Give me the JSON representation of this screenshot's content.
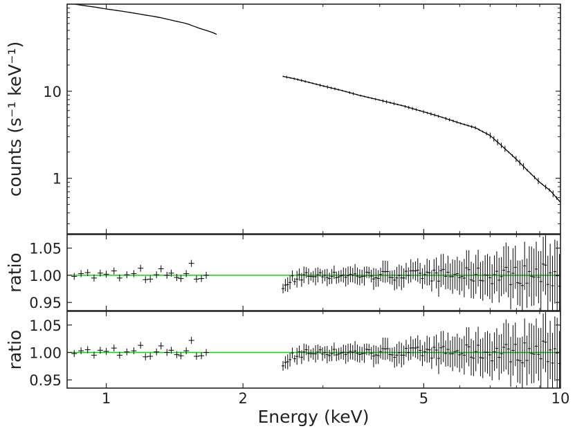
{
  "chart_data": {
    "type": "line",
    "x_axis": {
      "label": "Energy (keV)",
      "scale": "log",
      "range": [
        0.82,
        10
      ],
      "ticks": [
        {
          "value": 1,
          "label": "1"
        },
        {
          "value": 2,
          "label": "2"
        },
        {
          "value": 5,
          "label": "5"
        },
        {
          "value": 10,
          "label": "10"
        }
      ]
    },
    "panels": [
      {
        "id": "spectrum",
        "ylabel": "counts (s⁻¹ keV⁻¹)",
        "yscale": "log",
        "ylim": [
          0.23,
          100
        ],
        "yticks": [
          {
            "value": 1,
            "label": "1"
          },
          {
            "value": 10,
            "label": "10"
          }
        ],
        "segments": [
          {
            "x": [
              0.85,
              0.95,
              1.0,
              1.1,
              1.2,
              1.3,
              1.4,
              1.5,
              1.6,
              1.7,
              1.75
            ],
            "y": [
              100,
              92,
              88,
              82,
              76,
              71,
              65,
              60,
              53,
              48,
              45
            ]
          },
          {
            "x": [
              2.45,
              2.6,
              2.8,
              3.0,
              3.3,
              3.6,
              4.0,
              4.5,
              5.0,
              5.5,
              6.0,
              6.5,
              7.0,
              7.5,
              8.0,
              8.5,
              9.0,
              9.5,
              10.0
            ],
            "y": [
              14.8,
              13.9,
              12.6,
              11.5,
              10.2,
              9.0,
              7.9,
              6.8,
              5.8,
              5.0,
              4.3,
              3.8,
              3.1,
              2.25,
              1.65,
              1.2,
              0.9,
              0.72,
              0.53
            ]
          }
        ],
        "line_color": "#000000"
      },
      {
        "id": "ratio-upper",
        "ylabel": "ratio",
        "ylim": [
          0.935,
          1.075
        ],
        "yticks": [
          {
            "value": 0.95,
            "label": "0.95"
          },
          {
            "value": 1.0,
            "label": "1.00"
          },
          {
            "value": 1.05,
            "label": "1.05"
          }
        ],
        "reference_line": {
          "value": 1.0,
          "color": "#00dd00"
        },
        "seed": 7
      },
      {
        "id": "ratio-lower",
        "ylabel": "ratio",
        "ylim": [
          0.935,
          1.075
        ],
        "yticks": [
          {
            "value": 0.95,
            "label": "0.95"
          },
          {
            "value": 1.0,
            "label": "1.00"
          },
          {
            "value": 1.05,
            "label": "1.05"
          }
        ],
        "reference_line": {
          "value": 1.0,
          "color": "#00dd00"
        },
        "seed": 7
      }
    ],
    "ratio_points_low": [
      [
        0.85,
        0.998
      ],
      [
        0.88,
        1.003
      ],
      [
        0.91,
        1.005
      ],
      [
        0.94,
        0.995
      ],
      [
        0.97,
        1.004
      ],
      [
        1.0,
        1.002
      ],
      [
        1.04,
        1.008
      ],
      [
        1.07,
        0.995
      ],
      [
        1.11,
        1.001
      ],
      [
        1.15,
        1.003
      ],
      [
        1.19,
        1.013
      ],
      [
        1.22,
        0.992
      ],
      [
        1.25,
        0.993
      ],
      [
        1.29,
        1.001
      ],
      [
        1.32,
        1.012
      ],
      [
        1.36,
        1.0
      ],
      [
        1.39,
        1.004
      ],
      [
        1.43,
        0.996
      ],
      [
        1.46,
        0.994
      ],
      [
        1.5,
        1.003
      ],
      [
        1.54,
        1.022
      ],
      [
        1.58,
        0.993
      ],
      [
        1.62,
        0.994
      ],
      [
        1.66,
        1.0
      ]
    ]
  }
}
